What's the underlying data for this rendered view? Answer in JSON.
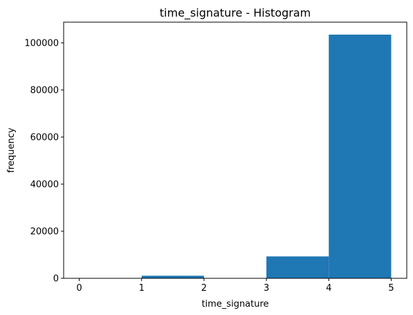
{
  "chart_data": {
    "type": "bar",
    "title": "time_signature - Histogram",
    "xlabel": "time_signature",
    "ylabel": "frequency",
    "bins": [
      {
        "x0": 0,
        "x1": 1,
        "value": 150
      },
      {
        "x0": 1,
        "x1": 2,
        "value": 1100
      },
      {
        "x0": 2,
        "x1": 3,
        "value": 0
      },
      {
        "x0": 3,
        "x1": 4,
        "value": 9300
      },
      {
        "x0": 4,
        "x1": 5,
        "value": 103500
      }
    ],
    "xlim": [
      -0.25,
      5.25
    ],
    "ylim": [
      0,
      108800
    ],
    "xticks": [
      0,
      1,
      2,
      3,
      4,
      5
    ],
    "yticks": [
      0,
      20000,
      40000,
      60000,
      80000,
      100000
    ],
    "bar_color": "#1f77b4",
    "grid": false,
    "legend": "none"
  }
}
